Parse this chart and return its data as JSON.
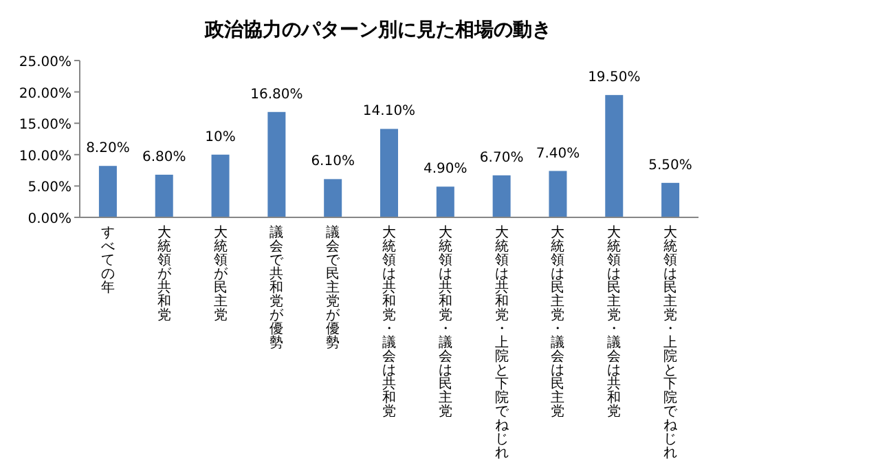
{
  "chart_data": {
    "type": "bar",
    "title": "政治協力のパターン別に見た相場の動き",
    "categories": [
      "すべての年",
      "大統領が共和党",
      "大統領が民主党",
      "議会で共和党が優勢",
      "議会で民主党が優勢",
      "大統領は共和党・議会は共和党",
      "大統領は共和党・議会は民主党",
      "大統領は共和党・上院と下院でねじれ",
      "大統領は民主党・議会は民主党",
      "大統領は民主党・議会は共和党",
      "大統領は民主党・上院と下院でねじれ"
    ],
    "values": [
      8.2,
      6.8,
      10,
      16.8,
      6.1,
      14.1,
      4.9,
      6.7,
      7.4,
      19.5,
      5.5
    ],
    "value_labels": [
      "8.20%",
      "6.80%",
      "10%",
      "16.80%",
      "6.10%",
      "14.10%",
      "4.90%",
      "6.70%",
      "7.40%",
      "19.50%",
      "5.50%"
    ],
    "color": "#4f81bd",
    "ylim": [
      0,
      25
    ],
    "yticks": [
      {
        "value": 0,
        "label": "0.00%"
      },
      {
        "value": 5,
        "label": "5.00%"
      },
      {
        "value": 10,
        "label": "10.00%"
      },
      {
        "value": 15,
        "label": "15.00%"
      },
      {
        "value": 20,
        "label": "20.00%"
      },
      {
        "value": 25,
        "label": "25.00%"
      }
    ],
    "grid": false
  }
}
